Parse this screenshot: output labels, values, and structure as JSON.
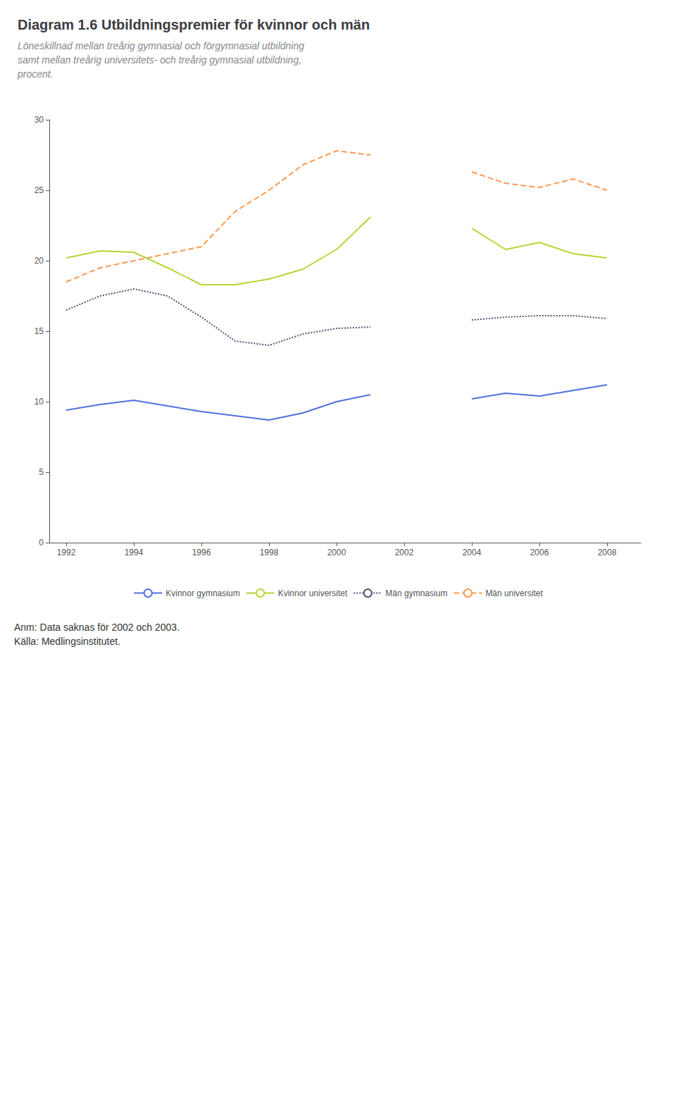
{
  "chart_data": {
    "type": "line",
    "title": "Diagram 1.6 Utbildningspremier för kvinnor och män",
    "subtitle": "Löneskillnad mellan treårig gymnasial och förgymnasial utbildning\nsamt mellan treårig universitets- och treårig gymnasial utbildning,\nprocent.",
    "annotations": [
      "Anm: Data saknas för 2002 och 2003.\nKälla: Medlingsinstitutet."
    ],
    "x": [
      1992,
      1993,
      1994,
      1995,
      1996,
      1997,
      1998,
      1999,
      2000,
      2001,
      2002,
      2003,
      2004,
      2005,
      2006,
      2007,
      2008
    ],
    "series": [
      {
        "name": "Kvinnor gymnasium",
        "line_style": "solid",
        "values": [
          9.4,
          9.8,
          10.1,
          9.7,
          9.3,
          9.0,
          8.7,
          9.2,
          10.0,
          10.5,
          null,
          null,
          10.2,
          10.6,
          10.4,
          10.8,
          11.2
        ]
      },
      {
        "name": "Kvinnor universitet",
        "line_style": "solid",
        "values": [
          20.2,
          20.7,
          20.6,
          19.5,
          18.3,
          18.3,
          18.7,
          19.4,
          20.8,
          23.1,
          null,
          null,
          22.3,
          20.8,
          21.3,
          20.5,
          20.2
        ]
      },
      {
        "name": "Män gymnasium",
        "line_style": "dotted",
        "values": [
          16.5,
          17.5,
          18.0,
          17.5,
          16.0,
          14.3,
          14.0,
          14.8,
          15.2,
          15.3,
          null,
          null,
          15.8,
          16.0,
          16.1,
          16.1,
          15.9
        ]
      },
      {
        "name": "Män universitet",
        "line_style": "dashed",
        "values": [
          18.5,
          19.5,
          20.0,
          20.5,
          21.0,
          23.5,
          25.0,
          26.8,
          27.8,
          27.5,
          null,
          null,
          26.3,
          25.5,
          25.2,
          25.8,
          25.0
        ]
      }
    ],
    "xlim": [
      1991.5,
      2009
    ],
    "xticks": [
      1992,
      1994,
      1996,
      1998,
      2000,
      2002,
      2004,
      2006,
      2008
    ],
    "ylim": [
      0,
      30
    ],
    "yticks": [
      0,
      5,
      10,
      15,
      20,
      25,
      30
    ],
    "grid": false,
    "legend": "bottom"
  }
}
